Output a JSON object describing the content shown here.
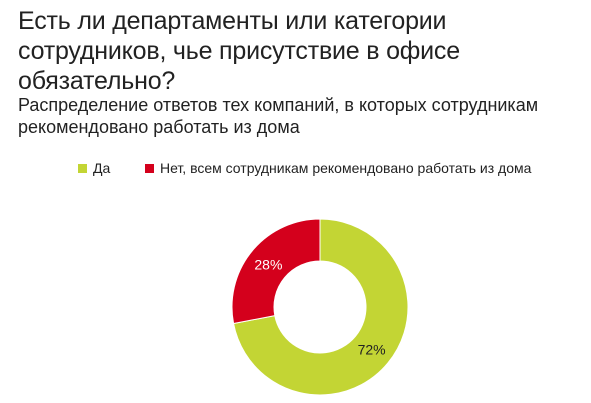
{
  "title": "Есть ли департаменты или категории сотрудников, чье присутствие в офисе обязательно?",
  "subtitle": "Распределение ответов тех компаний, в которых сотрудникам рекомендовано работать из дома",
  "legend": [
    {
      "label": "Да",
      "color": "#c3d534"
    },
    {
      "label": "Нет, всем сотрудникам рекомендовано работать из дома",
      "color": "#d4001c"
    }
  ],
  "chart_data": {
    "type": "pie",
    "variant": "donut",
    "title": "Есть ли департаменты или категории сотрудников, чье присутствие в офисе обязательно?",
    "subtitle": "Распределение ответов тех компаний, в которых сотрудникам рекомендовано работать из дома",
    "slices": [
      {
        "label": "Да",
        "value": 72,
        "display": "72%",
        "color": "#c3d534",
        "label_color": "#222222"
      },
      {
        "label": "Нет, всем сотрудникам рекомендовано работать из дома",
        "value": 28,
        "display": "28%",
        "color": "#d4001c",
        "label_color": "#ffffff"
      }
    ],
    "legend_position": "top"
  }
}
